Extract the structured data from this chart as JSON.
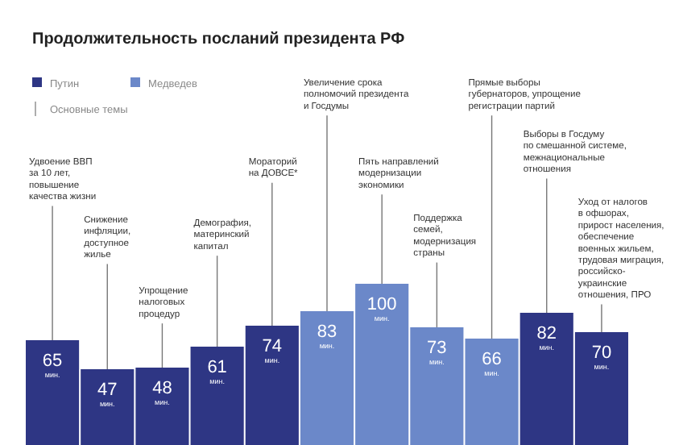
{
  "chart_data": {
    "type": "bar",
    "title": "Продолжительность посланий президента РФ",
    "categories": [
      null,
      null,
      null,
      null,
      null,
      null,
      null,
      null,
      null,
      null,
      null
    ],
    "series": [
      {
        "name": "Путин",
        "color": "#2e3684",
        "values": [
          65,
          47,
          48,
          61,
          74,
          null,
          null,
          null,
          null,
          82,
          70
        ],
        "value_labels": [
          "65 мин.",
          "47 мин.",
          "48 мин.",
          "61 мин.",
          "74 мин.",
          null,
          null,
          null,
          null,
          "82 мин.",
          "70 мин."
        ]
      },
      {
        "name": "Медведев",
        "color": "#6b88c9",
        "values": [
          null,
          null,
          null,
          null,
          null,
          83,
          100,
          73,
          66,
          null,
          null
        ],
        "value_labels": [
          null,
          null,
          null,
          null,
          null,
          "83 мин.",
          "100 мин.",
          "73 мин.",
          "66 мин.",
          null,
          null
        ]
      }
    ],
    "stacked": true,
    "legend": "top left",
    "legend_title": "Основные темы",
    "annotations": [
      "Удвоение ВВП\nза 10 лет,\nповышение\nкачества жизни",
      "Снижение\nинфляции,\nдоступное\nжилье",
      "Упрощение\nналоговых\nпроцедур",
      "Демография,\nматеринский\nкапитал",
      "Мораторий\nна ДОВСЕ*",
      "Увеличение срока\nполномочий президента\nи Госдумы",
      "Пять направлений\nмодернизации\nэкономики",
      "Поддержка\nсемей,\nмодернизация\nстраны",
      "Прямые выборы\nгубернаторов, упрощение\nрегистрации партий",
      "Выборы в Госдуму\nпо смешанной системе,\nмежнациональные\nотношения",
      "Уход от налогов\nв офшорах,\nприрост населения,\nобеспечение\nвоенных жильем,\nтрудовая миграция,\nроссийско-\nукраинские\nотношения, ПРО"
    ]
  }
}
